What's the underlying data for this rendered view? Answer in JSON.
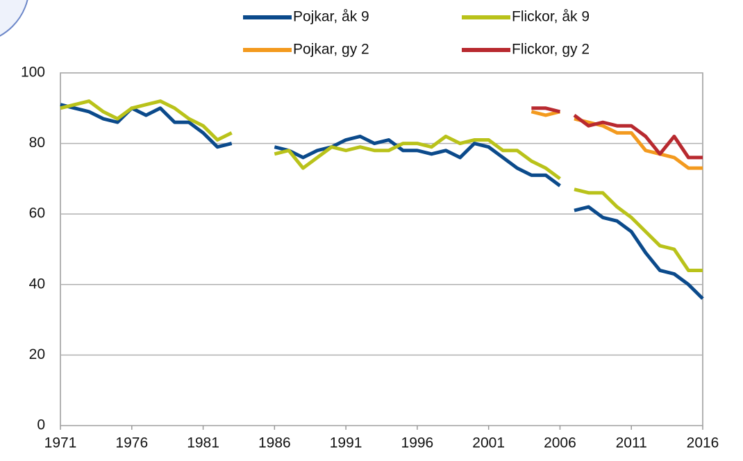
{
  "chart_data": {
    "type": "line",
    "x": [
      1971,
      1972,
      1973,
      1974,
      1975,
      1976,
      1977,
      1978,
      1979,
      1980,
      1981,
      1982,
      1983,
      1984,
      1985,
      1986,
      1987,
      1988,
      1989,
      1990,
      1991,
      1992,
      1993,
      1994,
      1995,
      1996,
      1997,
      1998,
      1999,
      2000,
      2001,
      2002,
      2003,
      2004,
      2005,
      2006,
      null,
      2007,
      2008,
      2009,
      2010,
      2011,
      2012,
      2013,
      2014,
      2015,
      2016
    ],
    "series": [
      {
        "name": "Pojkar, åk 9",
        "color": "#0b4a8b",
        "values": [
          91,
          90,
          89,
          87,
          86,
          90,
          88,
          90,
          86,
          86,
          83,
          79,
          80,
          null,
          null,
          79,
          78,
          76,
          78,
          79,
          81,
          82,
          80,
          81,
          78,
          78,
          77,
          78,
          76,
          80,
          79,
          76,
          73,
          71,
          71,
          68,
          null,
          61,
          62,
          59,
          58,
          55,
          49,
          44,
          43,
          40,
          36
        ]
      },
      {
        "name": "Flickor, åk 9",
        "color": "#b9c21a",
        "values": [
          90,
          91,
          92,
          89,
          87,
          90,
          91,
          92,
          90,
          87,
          85,
          81,
          83,
          null,
          null,
          77,
          78,
          73,
          76,
          79,
          78,
          79,
          78,
          78,
          80,
          80,
          79,
          82,
          80,
          81,
          81,
          78,
          78,
          75,
          73,
          70,
          null,
          67,
          66,
          66,
          62,
          59,
          55,
          51,
          50,
          44,
          44
        ]
      },
      {
        "name": "Pojkar, gy 2",
        "color": "#f39a1e",
        "values": [
          null,
          null,
          null,
          null,
          null,
          null,
          null,
          null,
          null,
          null,
          null,
          null,
          null,
          null,
          null,
          null,
          null,
          null,
          null,
          null,
          null,
          null,
          null,
          null,
          null,
          null,
          null,
          null,
          null,
          null,
          null,
          null,
          null,
          89,
          88,
          89,
          null,
          87,
          86,
          85,
          83,
          83,
          78,
          77,
          76,
          73,
          73
        ]
      },
      {
        "name": "Flickor, gy 2",
        "color": "#b8292f",
        "values": [
          null,
          null,
          null,
          null,
          null,
          null,
          null,
          null,
          null,
          null,
          null,
          null,
          null,
          null,
          null,
          null,
          null,
          null,
          null,
          null,
          null,
          null,
          null,
          null,
          null,
          null,
          null,
          null,
          null,
          null,
          null,
          null,
          null,
          90,
          90,
          89,
          null,
          88,
          85,
          86,
          85,
          85,
          82,
          77,
          82,
          76,
          76
        ]
      }
    ],
    "xlim": [
      1971,
      2016
    ],
    "xticks": [
      1971,
      1976,
      1981,
      1986,
      1991,
      1996,
      2001,
      2006,
      2011,
      2016
    ],
    "ylim": [
      0,
      100
    ],
    "yticks": [
      0,
      20,
      40,
      60,
      80,
      100
    ],
    "grid": true
  }
}
